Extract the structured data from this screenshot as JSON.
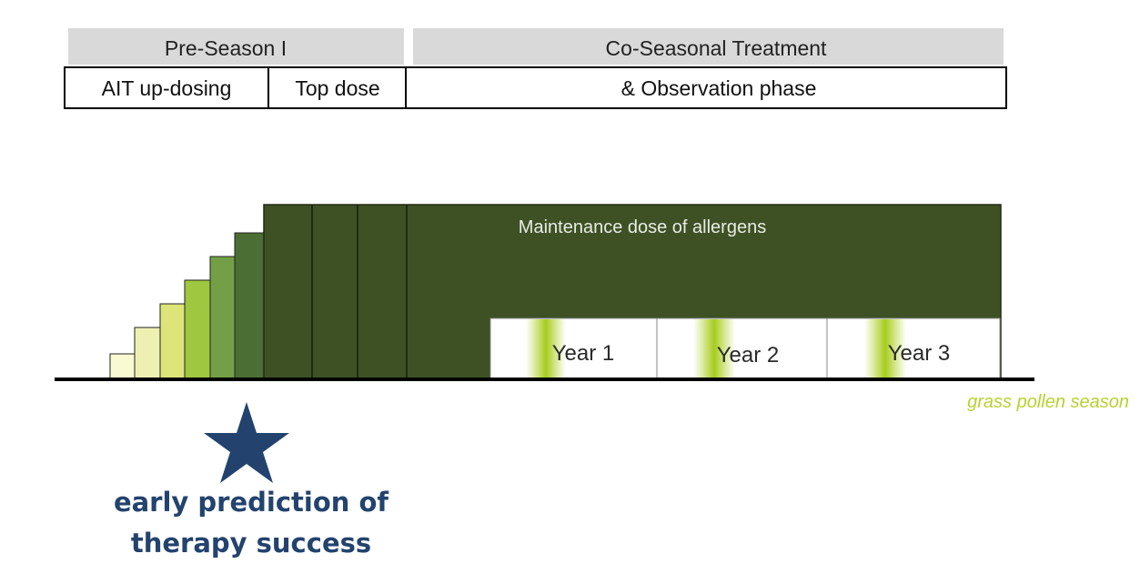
{
  "header": {
    "pre_season_label": "Pre-Season I",
    "co_seasonal_label": "Co-Seasonal Treatment"
  },
  "phases": {
    "up_dosing_label": "AIT up-dosing",
    "top_dose_label": "Top dose",
    "observation_label": "& Observation phase"
  },
  "maintenance": {
    "label": "Maintenance dose of allergens"
  },
  "up_dosing_steps": {
    "count": 6,
    "colors": [
      "#f9f9d2",
      "#eef0b2",
      "#dde479",
      "#9fc73f",
      "#73a046",
      "#4b6e34"
    ]
  },
  "top_dose": {
    "color": "#3e5125",
    "segments": 3
  },
  "years": [
    {
      "label": "Year 1"
    },
    {
      "label": "Year 2"
    },
    {
      "label": "Year 3"
    }
  ],
  "pollen_season": {
    "label": "grass pollen season",
    "color": "#b6d330"
  },
  "prediction": {
    "line1": "early prediction of",
    "line2": "therapy success",
    "color": "#23436e"
  }
}
